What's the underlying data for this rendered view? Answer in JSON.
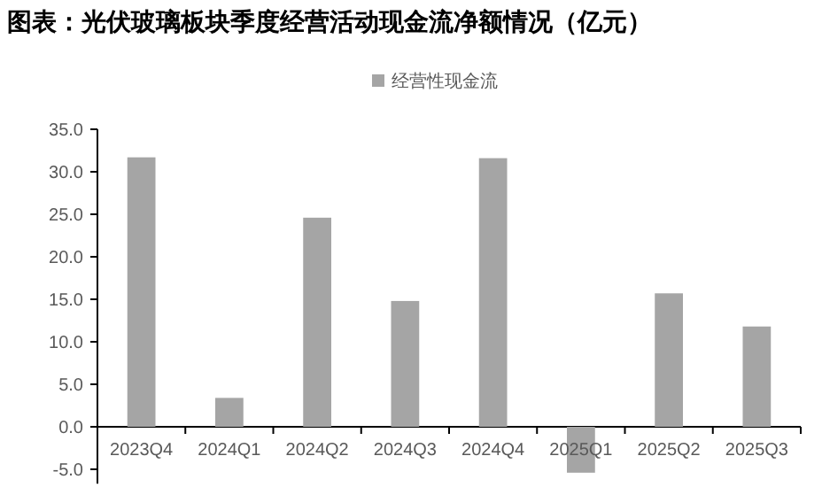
{
  "chart_data": {
    "type": "bar",
    "title": "图表：光伏玻璃板块季度经营活动现金流净额情况（亿元）",
    "categories": [
      "2023Q4",
      "2024Q1",
      "2024Q2",
      "2024Q3",
      "2024Q4",
      "2025Q1",
      "2025Q2",
      "2025Q3"
    ],
    "series": [
      {
        "name": "经营性现金流",
        "color": "#a5a5a5",
        "values": [
          31.7,
          3.4,
          24.6,
          14.8,
          31.6,
          -5.4,
          15.7,
          11.8
        ]
      }
    ],
    "ylim": [
      -6.7,
      35
    ],
    "yticks": [
      {
        "value": -5,
        "label": "-5.0"
      },
      {
        "value": 0,
        "label": "0.0"
      },
      {
        "value": 5,
        "label": "5.0"
      },
      {
        "value": 10,
        "label": "10.0"
      },
      {
        "value": 15,
        "label": "15.0"
      },
      {
        "value": 20,
        "label": "20.0"
      },
      {
        "value": 25,
        "label": "25.0"
      },
      {
        "value": 30,
        "label": "30.0"
      },
      {
        "value": 35,
        "label": "35.0"
      }
    ],
    "legend": "top",
    "grid": false
  }
}
